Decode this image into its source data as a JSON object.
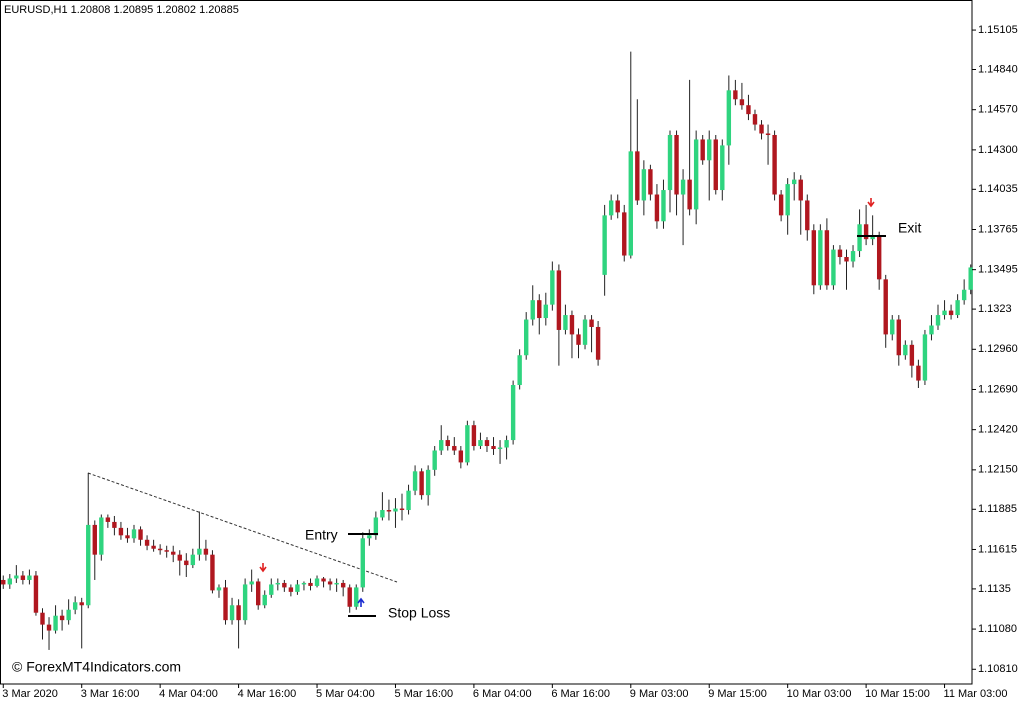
{
  "chart_data": {
    "type": "candlestick",
    "header": "EURUSD,H1  1.20808 1.20895 1.20802 1.20885",
    "watermark": "© ForexMT4Indicators.com",
    "annotations": [
      "Entry",
      "Stop Loss",
      "Exit"
    ],
    "bull_color": "#2fd47f",
    "bear_color": "#b0171f",
    "wick_color": "#222222",
    "ylim": [
      1.10711,
      1.15307
    ],
    "yticks": [
      1.15105,
      {
        "value": 1.1484,
        "label": "1.14840"
      },
      {
        "value": 1.1457,
        "label": "1.14570"
      },
      {
        "value": 1.143,
        "label": "1.14300"
      },
      1.14035,
      1.13765,
      1.13495,
      1.1323,
      {
        "value": 1.1296,
        "label": "1.12960"
      },
      {
        "value": 1.1269,
        "label": "1.12690"
      },
      {
        "value": 1.1242,
        "label": "1.12420"
      },
      {
        "value": 1.1215,
        "label": "1.12150"
      },
      1.11885,
      1.11615,
      1.1135,
      {
        "value": 1.1108,
        "label": "1.11080"
      },
      {
        "value": 1.1081,
        "label": "1.10810"
      }
    ],
    "xlim": [
      -0.5,
      148.2
    ],
    "xticks": [
      {
        "value": 0,
        "label": "3 Mar 2020"
      },
      {
        "value": 12,
        "label": "3 Mar 16:00"
      },
      {
        "value": 24,
        "label": "4 Mar 04:00"
      },
      {
        "value": 36,
        "label": "4 Mar 16:00"
      },
      {
        "value": 48,
        "label": "5 Mar 04:00"
      },
      {
        "value": 60,
        "label": "5 Mar 16:00"
      },
      {
        "value": 72,
        "label": "6 Mar 04:00"
      },
      {
        "value": 84,
        "label": "6 Mar 16:00"
      },
      {
        "value": 96,
        "label": "9 Mar 03:00"
      },
      {
        "value": 108,
        "label": "9 Mar 15:00"
      },
      {
        "value": 120,
        "label": "10 Mar 03:00"
      },
      {
        "value": 132,
        "label": "10 Mar 15:00"
      },
      {
        "value": 144,
        "label": "11 Mar 03:00"
      }
    ],
    "candles": [
      [
        1.1141,
        1.1144,
        1.1135,
        1.1138
      ],
      [
        1.1138,
        1.1145,
        1.1135,
        1.1142
      ],
      [
        1.1142,
        1.1151,
        1.1139,
        1.1144
      ],
      [
        1.1144,
        1.1147,
        1.1138,
        1.1141
      ],
      [
        1.1141,
        1.1148,
        1.1138,
        1.1144
      ],
      [
        1.1144,
        1.1147,
        1.1117,
        1.1119
      ],
      [
        1.1119,
        1.1122,
        1.1101,
        1.1111
      ],
      [
        1.1111,
        1.1116,
        1.1094,
        1.1107
      ],
      [
        1.1107,
        1.1124,
        1.1105,
        1.1117
      ],
      [
        1.1117,
        1.1121,
        1.1107,
        1.1114
      ],
      [
        1.1114,
        1.1128,
        1.1111,
        1.1121
      ],
      [
        1.1121,
        1.113,
        1.1118,
        1.1126
      ],
      [
        1.1126,
        1.1129,
        1.1095,
        1.1124
      ],
      [
        1.1124,
        1.1213,
        1.1122,
        1.1178
      ],
      [
        1.1178,
        1.1181,
        1.1141,
        1.1158
      ],
      [
        1.1158,
        1.1185,
        1.1154,
        1.1183
      ],
      [
        1.1183,
        1.1185,
        1.1176,
        1.118
      ],
      [
        1.118,
        1.1184,
        1.1171,
        1.1176
      ],
      [
        1.1176,
        1.118,
        1.1168,
        1.1171
      ],
      [
        1.1171,
        1.1176,
        1.1166,
        1.1169
      ],
      [
        1.1169,
        1.1178,
        1.1166,
        1.1175
      ],
      [
        1.1175,
        1.1177,
        1.1164,
        1.1168
      ],
      [
        1.1168,
        1.1171,
        1.1161,
        1.1164
      ],
      [
        1.1164,
        1.1168,
        1.116,
        1.1162
      ],
      [
        1.1162,
        1.1165,
        1.1158,
        1.1161
      ],
      [
        1.1161,
        1.1164,
        1.1156,
        1.116
      ],
      [
        1.116,
        1.1164,
        1.1153,
        1.1158
      ],
      [
        1.1158,
        1.1161,
        1.1144,
        1.1154
      ],
      [
        1.1154,
        1.1159,
        1.1143,
        1.1151
      ],
      [
        1.1151,
        1.1162,
        1.1149,
        1.1158
      ],
      [
        1.1158,
        1.1187,
        1.1154,
        1.1162
      ],
      [
        1.1162,
        1.1168,
        1.1154,
        1.1158
      ],
      [
        1.1158,
        1.1161,
        1.1132,
        1.1134
      ],
      [
        1.1134,
        1.1138,
        1.1129,
        1.1136
      ],
      [
        1.1136,
        1.1141,
        1.1111,
        1.1114
      ],
      [
        1.1114,
        1.1129,
        1.1111,
        1.1124
      ],
      [
        1.1124,
        1.1128,
        1.1095,
        1.1114
      ],
      [
        1.1114,
        1.1142,
        1.1111,
        1.1138
      ],
      [
        1.1138,
        1.1148,
        1.1133,
        1.114
      ],
      [
        1.114,
        1.1142,
        1.1121,
        1.1124
      ],
      [
        1.1124,
        1.1134,
        1.1122,
        1.1131
      ],
      [
        1.1131,
        1.1142,
        1.1129,
        1.1138
      ],
      [
        1.1138,
        1.1142,
        1.1134,
        1.1139
      ],
      [
        1.1139,
        1.1141,
        1.1133,
        1.1136
      ],
      [
        1.1136,
        1.1138,
        1.113,
        1.1133
      ],
      [
        1.1133,
        1.1141,
        1.1131,
        1.1138
      ],
      [
        1.1138,
        1.114,
        1.1134,
        1.1139
      ],
      [
        1.1139,
        1.1142,
        1.1134,
        1.1137
      ],
      [
        1.1137,
        1.1144,
        1.1136,
        1.1142
      ],
      [
        1.1142,
        1.1143,
        1.1136,
        1.114
      ],
      [
        1.114,
        1.1142,
        1.1134,
        1.1138
      ],
      [
        1.1138,
        1.1142,
        1.1133,
        1.1139
      ],
      [
        1.1139,
        1.1141,
        1.113,
        1.1136
      ],
      [
        1.1136,
        1.1138,
        1.1119,
        1.1123
      ],
      [
        1.1123,
        1.1138,
        1.1121,
        1.1136
      ],
      [
        1.1136,
        1.1173,
        1.1133,
        1.1169
      ],
      [
        1.1169,
        1.1175,
        1.1164,
        1.1171
      ],
      [
        1.1171,
        1.1187,
        1.1168,
        1.1183
      ],
      [
        1.1183,
        1.12,
        1.1181,
        1.1188
      ],
      [
        1.1188,
        1.1195,
        1.1181,
        1.1187
      ],
      [
        1.1187,
        1.1196,
        1.1176,
        1.1189
      ],
      [
        1.1189,
        1.1199,
        1.1181,
        1.1188
      ],
      [
        1.1188,
        1.1205,
        1.1185,
        1.1201
      ],
      [
        1.1201,
        1.1218,
        1.1198,
        1.1214
      ],
      [
        1.1214,
        1.1216,
        1.1195,
        1.1198
      ],
      [
        1.1198,
        1.1218,
        1.1191,
        1.1215
      ],
      [
        1.1215,
        1.1231,
        1.1211,
        1.1228
      ],
      [
        1.1228,
        1.1245,
        1.1225,
        1.1235
      ],
      [
        1.1235,
        1.1238,
        1.1228,
        1.1231
      ],
      [
        1.1231,
        1.1237,
        1.1225,
        1.1228
      ],
      [
        1.1228,
        1.1231,
        1.1216,
        1.122
      ],
      [
        1.122,
        1.1248,
        1.1218,
        1.1245
      ],
      [
        1.1245,
        1.1248,
        1.1228,
        1.1231
      ],
      [
        1.1231,
        1.124,
        1.1229,
        1.1235
      ],
      [
        1.1235,
        1.1237,
        1.1227,
        1.1231
      ],
      [
        1.1231,
        1.1237,
        1.1225,
        1.1229
      ],
      [
        1.1229,
        1.1235,
        1.1219,
        1.123
      ],
      [
        1.123,
        1.1238,
        1.1222,
        1.1235
      ],
      [
        1.1235,
        1.1275,
        1.1232,
        1.1272
      ],
      [
        1.1272,
        1.1296,
        1.1269,
        1.1292
      ],
      [
        1.1292,
        1.1321,
        1.1289,
        1.1316
      ],
      [
        1.1316,
        1.1339,
        1.1312,
        1.1329
      ],
      [
        1.1329,
        1.1333,
        1.1306,
        1.1317
      ],
      [
        1.1317,
        1.1334,
        1.1312,
        1.1326
      ],
      [
        1.1326,
        1.1355,
        1.1322,
        1.1349
      ],
      [
        1.1349,
        1.1353,
        1.1285,
        1.1309
      ],
      [
        1.1309,
        1.1326,
        1.1306,
        1.1319
      ],
      [
        1.1319,
        1.1322,
        1.129,
        1.1306
      ],
      [
        1.1306,
        1.131,
        1.129,
        1.1299
      ],
      [
        1.1299,
        1.1319,
        1.1296,
        1.1316
      ],
      [
        1.1316,
        1.1319,
        1.1294,
        1.1311
      ],
      [
        1.1311,
        1.1315,
        1.1285,
        1.1289
      ],
      [
        1.1346,
        1.1393,
        1.1332,
        1.1386
      ],
      [
        1.1386,
        1.14,
        1.1383,
        1.1396
      ],
      [
        1.1396,
        1.14,
        1.1384,
        1.1388
      ],
      [
        1.1388,
        1.1393,
        1.1355,
        1.1359
      ],
      [
        1.1359,
        1.1496,
        1.1357,
        1.1429
      ],
      [
        1.1429,
        1.1464,
        1.1393,
        1.1396
      ],
      [
        1.1396,
        1.1423,
        1.1386,
        1.1417
      ],
      [
        1.1417,
        1.142,
        1.1396,
        1.14
      ],
      [
        1.14,
        1.1407,
        1.1377,
        1.1382
      ],
      [
        1.1382,
        1.141,
        1.1377,
        1.1403
      ],
      [
        1.1403,
        1.1443,
        1.1388,
        1.144
      ],
      [
        1.144,
        1.1443,
        1.1386,
        1.14
      ],
      [
        1.14,
        1.1417,
        1.1366,
        1.141
      ],
      [
        1.141,
        1.1477,
        1.1386,
        1.139
      ],
      [
        1.139,
        1.1443,
        1.138,
        1.1437
      ],
      [
        1.1437,
        1.144,
        1.142,
        1.1423
      ],
      [
        1.1423,
        1.1443,
        1.1396,
        1.1437
      ],
      [
        1.1437,
        1.144,
        1.14,
        1.1403
      ],
      [
        1.1403,
        1.1437,
        1.1396,
        1.1433
      ],
      [
        1.1433,
        1.148,
        1.142,
        1.147
      ],
      [
        1.147,
        1.1477,
        1.146,
        1.1464
      ],
      [
        1.1464,
        1.1475,
        1.1457,
        1.146
      ],
      [
        1.146,
        1.1467,
        1.145,
        1.1454
      ],
      [
        1.1454,
        1.1457,
        1.1443,
        1.1447
      ],
      [
        1.1447,
        1.145,
        1.1437,
        1.1441
      ],
      [
        1.1441,
        1.1447,
        1.142,
        1.144
      ],
      [
        1.144,
        1.1443,
        1.1396,
        1.14
      ],
      [
        1.14,
        1.1403,
        1.1382,
        1.1386
      ],
      [
        1.1386,
        1.1411,
        1.1373,
        1.1407
      ],
      [
        1.1407,
        1.1415,
        1.1396,
        1.141
      ],
      [
        1.141,
        1.1413,
        1.1373,
        1.1396
      ],
      [
        1.1396,
        1.14,
        1.1369,
        1.1376
      ],
      [
        1.1376,
        1.138,
        1.1333,
        1.1339
      ],
      [
        1.1339,
        1.138,
        1.1336,
        1.1376
      ],
      [
        1.1376,
        1.1384,
        1.1336,
        1.1339
      ],
      [
        1.1339,
        1.1366,
        1.1336,
        1.1363
      ],
      [
        1.1363,
        1.1366,
        1.1353,
        1.1358
      ],
      [
        1.1358,
        1.1363,
        1.1336,
        1.1355
      ],
      [
        1.1355,
        1.1366,
        1.1351,
        1.1362
      ],
      [
        1.1362,
        1.139,
        1.1358,
        1.138
      ],
      [
        1.138,
        1.1393,
        1.1366,
        1.137
      ],
      [
        1.137,
        1.1386,
        1.1366,
        1.1372
      ],
      [
        1.1372,
        1.1375,
        1.1336,
        1.1343
      ],
      [
        1.1343,
        1.1346,
        1.1297,
        1.1306
      ],
      [
        1.1306,
        1.1319,
        1.1302,
        1.1316
      ],
      [
        1.1316,
        1.1319,
        1.1285,
        1.1292
      ],
      [
        1.1292,
        1.1302,
        1.1289,
        1.1299
      ],
      [
        1.1299,
        1.1302,
        1.1277,
        1.1285
      ],
      [
        1.1285,
        1.1289,
        1.127,
        1.1275
      ],
      [
        1.1275,
        1.1309,
        1.1272,
        1.1306
      ],
      [
        1.1306,
        1.1319,
        1.1302,
        1.1312
      ],
      [
        1.1312,
        1.1326,
        1.1309,
        1.1319
      ],
      [
        1.1319,
        1.1329,
        1.1316,
        1.1322
      ],
      [
        1.1322,
        1.1326,
        1.1316,
        1.1319
      ],
      [
        1.1319,
        1.1333,
        1.1317,
        1.1329
      ],
      [
        1.1329,
        1.1343,
        1.1326,
        1.1336
      ],
      [
        1.1336,
        1.1353,
        1.1333,
        1.1351
      ]
    ]
  }
}
